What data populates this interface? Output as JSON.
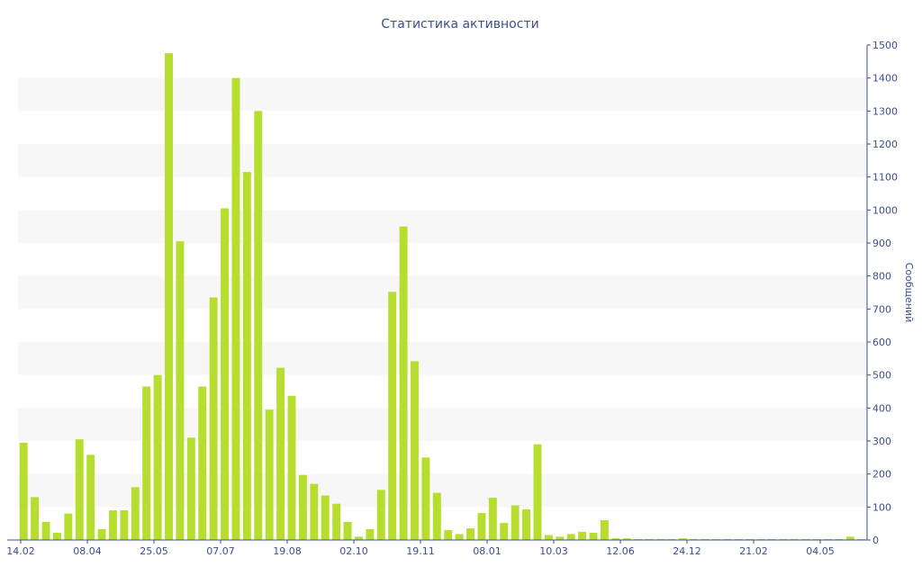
{
  "chart_data": {
    "type": "bar",
    "title": "Статистика активности",
    "ylabel": "Сообщений",
    "xlabel": "",
    "ylim": [
      0,
      1500
    ],
    "y_ticks": [
      0,
      100,
      200,
      300,
      400,
      500,
      600,
      700,
      800,
      900,
      1000,
      1100,
      1200,
      1300,
      1400,
      1500
    ],
    "y_axis_side": "right",
    "x_tick_labels": [
      "14.02",
      "08.04",
      "25.05",
      "07.07",
      "19.08",
      "02.10",
      "19.11",
      "08.01",
      "10.03",
      "12.06",
      "24.12",
      "21.02",
      "04.05"
    ],
    "bar_color": "#b5de2e",
    "values": [
      295,
      130,
      55,
      22,
      80,
      305,
      258,
      33,
      90,
      90,
      160,
      465,
      500,
      1475,
      905,
      310,
      465,
      735,
      1005,
      1400,
      1115,
      1300,
      395,
      522,
      437,
      197,
      170,
      135,
      110,
      55,
      10,
      33,
      152,
      752,
      950,
      542,
      250,
      143,
      30,
      18,
      35,
      82,
      128,
      52,
      105,
      93,
      290,
      15,
      10,
      18,
      25,
      22,
      60,
      5,
      5,
      3,
      3,
      3,
      3,
      5,
      3,
      3,
      3,
      3,
      3,
      3,
      3,
      3,
      3,
      3,
      3,
      3,
      3,
      3,
      10,
      3
    ]
  }
}
